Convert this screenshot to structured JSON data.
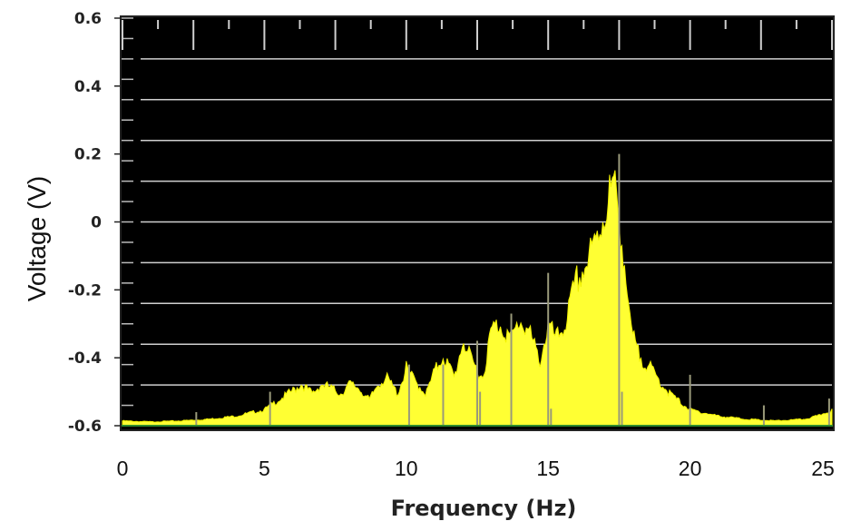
{
  "chart_data": {
    "type": "area",
    "xlabel": "Frequency (Hz)",
    "ylabel": "Voltage (V)",
    "xlim": [
      0,
      25
    ],
    "ylim": [
      -0.6,
      0.6
    ],
    "xticks": [
      "0",
      "5",
      "10",
      "15",
      "20",
      "25"
    ],
    "yticks": [
      "0.6",
      "0.4",
      "0.2",
      "0",
      "-0.2",
      "-0.4",
      "-0.6"
    ],
    "grid": true,
    "colors": {
      "background": "#000000",
      "series": "#ffff33",
      "gridline": "#cfcfcf",
      "baseline": "#2e8b2e"
    },
    "series": [
      {
        "x": [
          0,
          1,
          2,
          3,
          4,
          5,
          5.5,
          6,
          6.3,
          6.7,
          7,
          7.3,
          7.7,
          8,
          8.3,
          8.7,
          9,
          9.3,
          9.7,
          10,
          10.3,
          10.7,
          11,
          11.3,
          11.7,
          12,
          12.3,
          12.7,
          13,
          13.3,
          13.7,
          14,
          14.3,
          14.7,
          15,
          15.3,
          15.6,
          16,
          16.3,
          16.6,
          17,
          17.3,
          17.6,
          17.9,
          18.2,
          18.6,
          19,
          19.3,
          19.7,
          20,
          21,
          22,
          23,
          24,
          24.5,
          25
        ],
        "values": [
          -0.585,
          -0.588,
          -0.585,
          -0.58,
          -0.57,
          -0.55,
          -0.52,
          -0.49,
          -0.47,
          -0.5,
          -0.47,
          -0.48,
          -0.5,
          -0.47,
          -0.48,
          -0.52,
          -0.47,
          -0.45,
          -0.5,
          -0.42,
          -0.46,
          -0.5,
          -0.43,
          -0.38,
          -0.45,
          -0.33,
          -0.4,
          -0.45,
          -0.3,
          -0.28,
          -0.33,
          -0.27,
          -0.3,
          -0.4,
          -0.29,
          -0.33,
          -0.28,
          -0.15,
          -0.1,
          -0.05,
          0.08,
          0.15,
          0.0,
          -0.3,
          -0.38,
          -0.42,
          -0.47,
          -0.5,
          -0.53,
          -0.55,
          -0.57,
          -0.58,
          -0.585,
          -0.58,
          -0.57,
          -0.55
        ]
      }
    ]
  }
}
